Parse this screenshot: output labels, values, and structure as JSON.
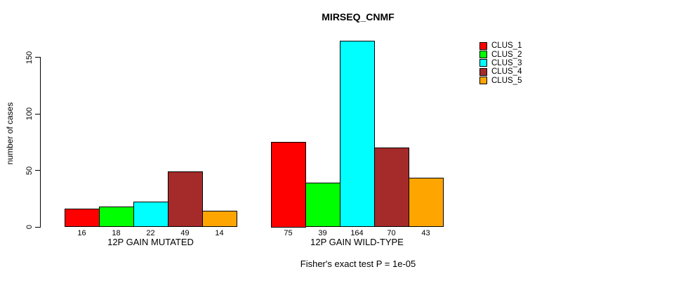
{
  "chart_data": {
    "type": "bar",
    "title": "MIRSEQ_CNMF",
    "ylabel": "number of cases",
    "xlabel": "",
    "y_ticks": [
      0,
      50,
      100,
      150
    ],
    "ylim": [
      0,
      164
    ],
    "grid": false,
    "legend_position": "right",
    "series_names": [
      "CLUS_1",
      "CLUS_2",
      "CLUS_3",
      "CLUS_4",
      "CLUS_5"
    ],
    "colors": [
      "#FF0000",
      "#00FF00",
      "#00FFFF",
      "#A52A2A",
      "#FFA500"
    ],
    "groups": [
      {
        "label": "12P GAIN MUTATED",
        "values": [
          16,
          18,
          22,
          49,
          14
        ]
      },
      {
        "label": "12P GAIN WILD-TYPE",
        "values": [
          75,
          39,
          164,
          70,
          43
        ]
      }
    ],
    "footnote": "Fisher's exact test P = 1e-05"
  }
}
